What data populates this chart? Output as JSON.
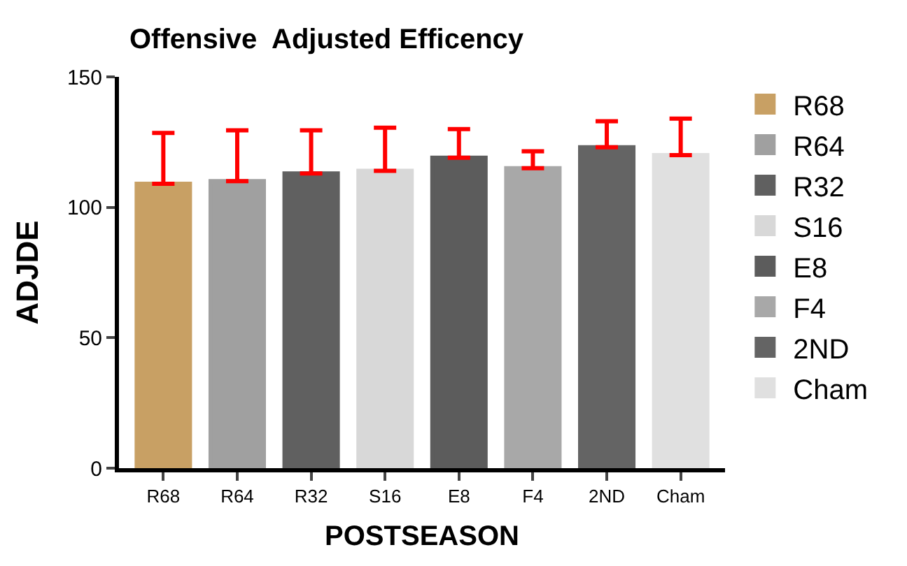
{
  "chart_data": {
    "type": "bar",
    "title": "Offensive  Adjusted Efficency",
    "xlabel": "POSTSEASON",
    "ylabel": "ADJDE",
    "categories": [
      "R68",
      "R64",
      "R32",
      "S16",
      "E8",
      "F4",
      "2ND",
      "Cham"
    ],
    "series": [
      {
        "name": "R68",
        "color": "#c8a064",
        "values": [
          109,
          null,
          null,
          null,
          null,
          null,
          null,
          null
        ],
        "errors": [
          [
            109,
            128.5
          ],
          null,
          null,
          null,
          null,
          null,
          null,
          null
        ]
      },
      {
        "name": "R64",
        "color": "#a0a0a0",
        "values": [
          null,
          110,
          null,
          null,
          null,
          null,
          null,
          null
        ],
        "errors": [
          null,
          [
            110,
            129.5
          ],
          null,
          null,
          null,
          null,
          null,
          null
        ]
      },
      {
        "name": "R32",
        "color": "#606060",
        "values": [
          null,
          null,
          113,
          null,
          null,
          null,
          null,
          null
        ],
        "errors": [
          null,
          null,
          [
            113,
            129.5
          ],
          null,
          null,
          null,
          null,
          null
        ]
      },
      {
        "name": "S16",
        "color": "#d8d8d8",
        "values": [
          null,
          null,
          null,
          114,
          null,
          null,
          null,
          null
        ],
        "errors": [
          null,
          null,
          null,
          [
            114,
            130.5
          ],
          null,
          null,
          null,
          null
        ]
      },
      {
        "name": "E8",
        "color": "#5c5c5c",
        "values": [
          null,
          null,
          null,
          null,
          119,
          null,
          null,
          null
        ],
        "errors": [
          null,
          null,
          null,
          null,
          [
            119,
            130
          ],
          null,
          null,
          null
        ]
      },
      {
        "name": "F4",
        "color": "#a8a8a8",
        "values": [
          null,
          null,
          null,
          null,
          null,
          115,
          null,
          null
        ],
        "errors": [
          null,
          null,
          null,
          null,
          null,
          [
            115,
            121.5
          ],
          null,
          null
        ]
      },
      {
        "name": "2ND",
        "color": "#646464",
        "values": [
          null,
          null,
          null,
          null,
          null,
          null,
          123,
          null
        ],
        "errors": [
          null,
          null,
          null,
          null,
          null,
          null,
          [
            123,
            133
          ],
          null
        ]
      },
      {
        "name": "Cham",
        "color": "#e0e0e0",
        "values": [
          null,
          null,
          null,
          null,
          null,
          null,
          null,
          120
        ],
        "errors": [
          null,
          null,
          null,
          null,
          null,
          null,
          null,
          [
            120,
            134
          ]
        ]
      }
    ],
    "ylim": [
      0,
      150
    ],
    "yticks": [
      0,
      50,
      100,
      150
    ],
    "grid": false,
    "legend": "right"
  }
}
